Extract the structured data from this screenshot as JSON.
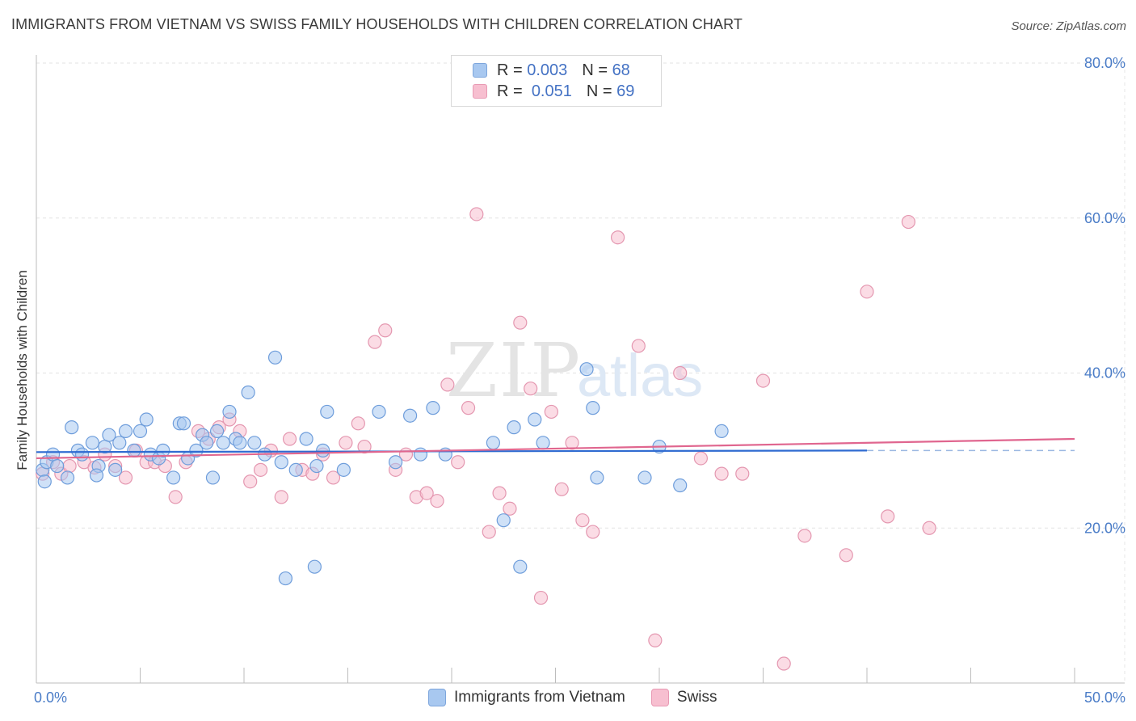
{
  "title": "IMMIGRANTS FROM VIETNAM VS SWISS FAMILY HOUSEHOLDS WITH CHILDREN CORRELATION CHART",
  "source": "Source: ZipAtlas.com",
  "watermark": {
    "zip": "ZIP",
    "atlas": "atlas"
  },
  "legend": {
    "rows": [
      {
        "r_label": "R =",
        "r_value": "0.003",
        "n_label": "N =",
        "n_value": "68",
        "color": "#a8c8f0",
        "border": "#7ea6dc"
      },
      {
        "r_label": "R =",
        "r_value": "0.051",
        "n_label": "N =",
        "n_value": "69",
        "color": "#f7bfd0",
        "border": "#e89ab4"
      }
    ]
  },
  "chart_data": {
    "type": "scatter",
    "title": "IMMIGRANTS FROM VIETNAM VS SWISS FAMILY HOUSEHOLDS WITH CHILDREN CORRELATION CHART",
    "xlabel": "",
    "ylabel": "Family Households with Children",
    "xlim": [
      0,
      50
    ],
    "ylim": [
      0,
      80
    ],
    "x_tick_labels": [
      "0.0%",
      "50.0%"
    ],
    "y_ticks": [
      20,
      40,
      60,
      80
    ],
    "y_tick_labels": [
      "20.0%",
      "40.0%",
      "60.0%",
      "80.0%"
    ],
    "grid": true,
    "series": [
      {
        "name": "Immigrants from Vietnam",
        "color": "#a8c8f0",
        "stroke": "#6e9ddb",
        "line_color": "#2f6bd1",
        "trend": {
          "x0": 0,
          "y0": 29.8,
          "x1": 40,
          "y1": 30.0,
          "dash_to_x": 50
        },
        "points": [
          [
            0.3,
            27.5
          ],
          [
            0.5,
            28.5
          ],
          [
            0.8,
            29.5
          ],
          [
            1.0,
            28.0
          ],
          [
            1.5,
            26.5
          ],
          [
            1.7,
            33.0
          ],
          [
            2.0,
            30.0
          ],
          [
            2.2,
            29.5
          ],
          [
            2.7,
            31.0
          ],
          [
            3.0,
            28.0
          ],
          [
            3.3,
            30.5
          ],
          [
            3.5,
            32.0
          ],
          [
            3.8,
            27.5
          ],
          [
            4.0,
            31.0
          ],
          [
            4.3,
            32.5
          ],
          [
            4.7,
            30.0
          ],
          [
            5.0,
            32.5
          ],
          [
            5.3,
            34.0
          ],
          [
            5.5,
            29.5
          ],
          [
            5.9,
            29.0
          ],
          [
            6.1,
            30.0
          ],
          [
            6.6,
            26.5
          ],
          [
            6.9,
            33.5
          ],
          [
            7.1,
            33.5
          ],
          [
            7.3,
            29.0
          ],
          [
            7.7,
            30.0
          ],
          [
            8.0,
            32.0
          ],
          [
            8.2,
            31.0
          ],
          [
            8.5,
            26.5
          ],
          [
            8.7,
            32.5
          ],
          [
            9.0,
            31.0
          ],
          [
            9.3,
            35.0
          ],
          [
            9.6,
            31.5
          ],
          [
            9.8,
            31.0
          ],
          [
            10.2,
            37.5
          ],
          [
            10.5,
            31.0
          ],
          [
            11.0,
            29.5
          ],
          [
            11.5,
            42.0
          ],
          [
            11.8,
            28.5
          ],
          [
            12.0,
            13.5
          ],
          [
            12.5,
            27.5
          ],
          [
            13.0,
            31.5
          ],
          [
            13.5,
            28.0
          ],
          [
            13.8,
            30.0
          ],
          [
            13.4,
            15.0
          ],
          [
            14.0,
            35.0
          ],
          [
            14.8,
            27.5
          ],
          [
            16.5,
            35.0
          ],
          [
            17.3,
            28.5
          ],
          [
            18.0,
            34.5
          ],
          [
            18.5,
            29.5
          ],
          [
            19.1,
            35.5
          ],
          [
            19.7,
            29.5
          ],
          [
            22.0,
            31.0
          ],
          [
            22.5,
            21.0
          ],
          [
            23.0,
            33.0
          ],
          [
            23.3,
            15.0
          ],
          [
            24.0,
            34.0
          ],
          [
            24.4,
            31.0
          ],
          [
            26.5,
            40.5
          ],
          [
            26.8,
            35.5
          ],
          [
            27.0,
            26.5
          ],
          [
            29.3,
            26.5
          ],
          [
            30.0,
            30.5
          ],
          [
            31.0,
            25.5
          ],
          [
            33.0,
            32.5
          ],
          [
            0.4,
            26.0
          ],
          [
            2.9,
            26.8
          ]
        ]
      },
      {
        "name": "Swiss",
        "color": "#f7bfd0",
        "stroke": "#e497b0",
        "line_color": "#e0668f",
        "trend": {
          "x0": 0,
          "y0": 29.0,
          "x1": 50,
          "y1": 31.5
        },
        "points": [
          [
            0.3,
            27.0
          ],
          [
            0.8,
            28.5
          ],
          [
            1.2,
            27.0
          ],
          [
            1.6,
            28.0
          ],
          [
            2.3,
            28.5
          ],
          [
            2.8,
            27.8
          ],
          [
            3.3,
            29.5
          ],
          [
            3.8,
            28.0
          ],
          [
            4.3,
            26.5
          ],
          [
            4.8,
            30.0
          ],
          [
            5.3,
            28.5
          ],
          [
            5.7,
            28.5
          ],
          [
            6.2,
            28.0
          ],
          [
            6.7,
            24.0
          ],
          [
            7.2,
            28.5
          ],
          [
            7.8,
            32.5
          ],
          [
            8.3,
            31.5
          ],
          [
            8.8,
            33.0
          ],
          [
            9.3,
            34.0
          ],
          [
            9.8,
            32.5
          ],
          [
            10.3,
            26.0
          ],
          [
            10.8,
            27.5
          ],
          [
            11.3,
            30.0
          ],
          [
            11.8,
            24.0
          ],
          [
            12.2,
            31.5
          ],
          [
            12.8,
            27.5
          ],
          [
            13.3,
            27.0
          ],
          [
            13.8,
            29.5
          ],
          [
            14.3,
            26.5
          ],
          [
            14.9,
            31.0
          ],
          [
            15.5,
            33.5
          ],
          [
            15.8,
            30.5
          ],
          [
            16.3,
            44.0
          ],
          [
            16.8,
            45.5
          ],
          [
            17.3,
            27.5
          ],
          [
            17.8,
            29.5
          ],
          [
            18.3,
            24.0
          ],
          [
            18.8,
            24.5
          ],
          [
            19.3,
            23.5
          ],
          [
            19.8,
            38.5
          ],
          [
            20.3,
            28.5
          ],
          [
            20.8,
            35.5
          ],
          [
            21.2,
            60.5
          ],
          [
            21.8,
            19.5
          ],
          [
            22.3,
            24.5
          ],
          [
            22.8,
            22.5
          ],
          [
            23.3,
            46.5
          ],
          [
            23.8,
            38.0
          ],
          [
            24.3,
            11.0
          ],
          [
            24.8,
            35.0
          ],
          [
            25.3,
            25.0
          ],
          [
            25.8,
            31.0
          ],
          [
            26.3,
            21.0
          ],
          [
            26.8,
            19.5
          ],
          [
            28.0,
            57.5
          ],
          [
            29.0,
            43.5
          ],
          [
            29.8,
            5.5
          ],
          [
            31.0,
            40.0
          ],
          [
            32.0,
            29.0
          ],
          [
            33.0,
            27.0
          ],
          [
            34.0,
            27.0
          ],
          [
            35.0,
            39.0
          ],
          [
            37.0,
            19.0
          ],
          [
            39.0,
            16.5
          ],
          [
            40.0,
            50.5
          ],
          [
            41.0,
            21.5
          ],
          [
            42.0,
            59.5
          ],
          [
            43.0,
            20.0
          ],
          [
            36.0,
            2.5
          ]
        ]
      }
    ]
  }
}
